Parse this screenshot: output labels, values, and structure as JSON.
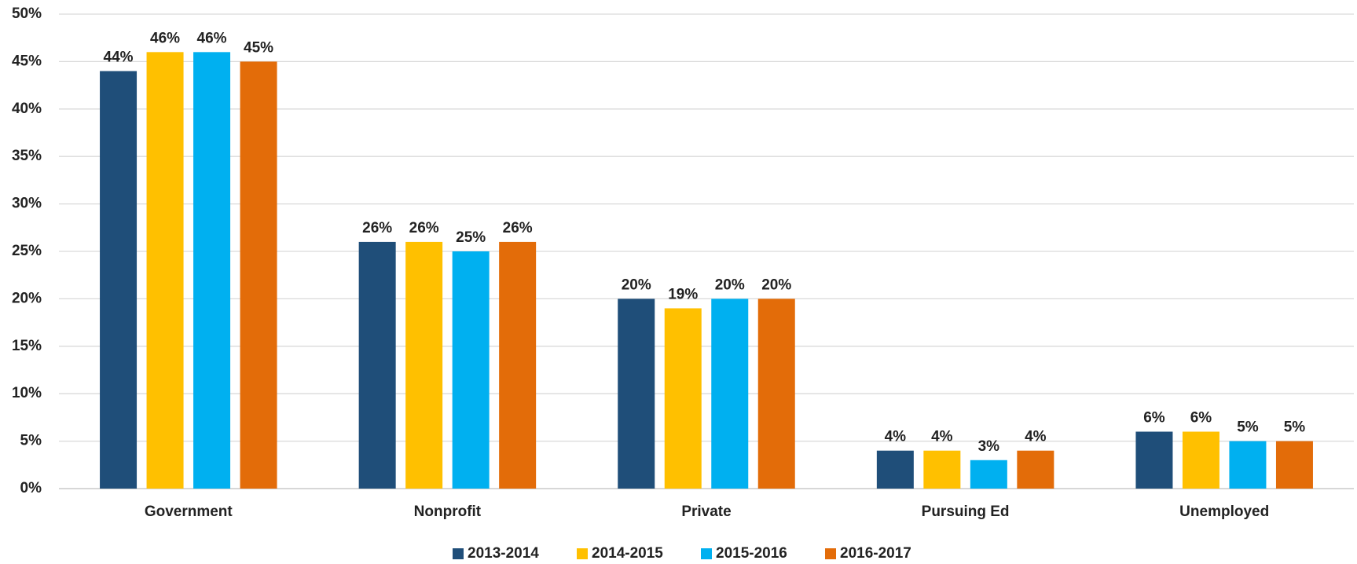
{
  "chart_data": {
    "type": "bar",
    "categories": [
      "Government",
      "Nonprofit",
      "Private",
      "Pursuing Ed",
      "Unemployed"
    ],
    "series": [
      {
        "name": "2013-2014",
        "color": "#1f4e79",
        "values": [
          44,
          26,
          20,
          4,
          6
        ],
        "value_labels": [
          "44%",
          "26%",
          "20%",
          "4%",
          "6%"
        ]
      },
      {
        "name": "2014-2015",
        "color": "#ffc000",
        "values": [
          46,
          26,
          19,
          4,
          6
        ],
        "value_labels": [
          "46%",
          "26%",
          "19%",
          "4%",
          "6%"
        ]
      },
      {
        "name": "2015-2016",
        "color": "#00b0f0",
        "values": [
          46,
          25,
          20,
          3,
          5
        ],
        "value_labels": [
          "46%",
          "25%",
          "20%",
          "3%",
          "5%"
        ]
      },
      {
        "name": "2016-2017",
        "color": "#e36c09",
        "values": [
          45,
          26,
          20,
          4,
          5
        ],
        "value_labels": [
          "45%",
          "26%",
          "20%",
          "4%",
          "5%"
        ]
      }
    ],
    "ylim": [
      0,
      50
    ],
    "yticks": [
      {
        "value": 0,
        "label": "0%"
      },
      {
        "value": 5,
        "label": "5%"
      },
      {
        "value": 10,
        "label": "10%"
      },
      {
        "value": 15,
        "label": "15%"
      },
      {
        "value": 20,
        "label": "20%"
      },
      {
        "value": 25,
        "label": "25%"
      },
      {
        "value": 30,
        "label": "30%"
      },
      {
        "value": 35,
        "label": "35%"
      },
      {
        "value": 40,
        "label": "40%"
      },
      {
        "value": 45,
        "label": "45%"
      },
      {
        "value": 50,
        "label": "50%"
      }
    ],
    "grid": true,
    "legend": "bottom"
  }
}
